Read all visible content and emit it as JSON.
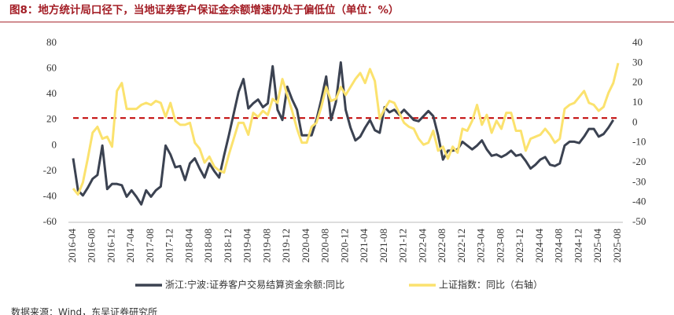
{
  "chart_data": {
    "type": "line",
    "title": "图8：地方统计局口径下，当地证券客户保证金余额增速仍处于偏低位（单位：%）",
    "source": "数据来源：Wind，东吴证券研究所",
    "categories": [
      "2016-04",
      null,
      null,
      null,
      "2016-08",
      null,
      null,
      null,
      "2016-12",
      null,
      null,
      null,
      "2017-04",
      null,
      null,
      null,
      "2017-08",
      null,
      null,
      null,
      "2017-12",
      null,
      null,
      null,
      "2018-04",
      null,
      null,
      null,
      "2018-08",
      null,
      null,
      null,
      "2018-12",
      null,
      null,
      null,
      "2019-04",
      null,
      null,
      null,
      "2019-08",
      null,
      null,
      null,
      "2019-12",
      null,
      null,
      null,
      "2020-04",
      null,
      null,
      null,
      "2020-08",
      null,
      null,
      null,
      "2020-12",
      null,
      null,
      null,
      "2021-04",
      null,
      null,
      null,
      "2021-08",
      null,
      null,
      null,
      "2021-12",
      null,
      null,
      null,
      "2022-04",
      null,
      null,
      null,
      "2022-08",
      null,
      null,
      null,
      "2022-12",
      null,
      null,
      null,
      "2023-04",
      null,
      null,
      null,
      "2023-08",
      null,
      null,
      null,
      "2023-12",
      null,
      null,
      null,
      "2024-04",
      null,
      null,
      null,
      "2024-08",
      null,
      null,
      null,
      "2024-12",
      null,
      null,
      null,
      "2025-04",
      null,
      null,
      null,
      "2025-08"
    ],
    "series": [
      {
        "name": "浙江:宁波:证券客户交易结算资金余额:同比",
        "color": "#3b4251",
        "values": [
          -10,
          -35,
          -39,
          -33,
          -26,
          -23,
          0,
          -34,
          -30,
          -30,
          -31,
          -40,
          -35,
          -40,
          -46,
          -35,
          -40,
          -35,
          -32,
          0,
          -7,
          -17,
          -16,
          -27,
          -14,
          -10,
          -18,
          -25,
          -14,
          -20,
          -25,
          -8,
          8,
          25,
          42,
          52,
          29,
          33,
          36,
          30,
          33,
          62,
          28,
          20,
          46,
          36,
          28,
          8,
          8,
          8,
          20,
          36,
          54,
          20,
          34,
          65,
          28,
          14,
          4,
          7,
          14,
          20,
          12,
          10,
          30,
          26,
          28,
          24,
          28,
          24,
          20,
          19,
          23,
          27,
          23,
          8,
          -11,
          -4,
          -4,
          -3,
          3,
          0,
          -3,
          0,
          4,
          -3,
          -8,
          -7,
          -9,
          -7,
          -4,
          -8,
          -7,
          -12,
          -18,
          -15,
          -11,
          -9,
          -15,
          -16,
          -14,
          0,
          3,
          3,
          2,
          7,
          13,
          13,
          7,
          9,
          14,
          20,
          null
        ]
      },
      {
        "name": "上证指数：同比（右轴）",
        "color": "#fbe26e",
        "axis": "y2",
        "values": [
          -33,
          -36,
          -30,
          -18,
          -5,
          -2,
          -8,
          -7,
          -12,
          16,
          20,
          7,
          7,
          7,
          9,
          10,
          9,
          11,
          10,
          3,
          10,
          1,
          -1,
          -1,
          0,
          -10,
          -13,
          -20,
          -17,
          -22,
          -24,
          -25,
          -16,
          -8,
          0,
          0,
          -6,
          5,
          3,
          6,
          4,
          12,
          10,
          22,
          14,
          6,
          -3,
          -10,
          -10,
          -2,
          0,
          8,
          18,
          11,
          12,
          18,
          14,
          18,
          22,
          25,
          20,
          27,
          21,
          2,
          7,
          11,
          10,
          5,
          0,
          -2,
          -3,
          -8,
          -11,
          -10,
          -4,
          -14,
          -12,
          -18,
          -12,
          -15,
          -3,
          -4,
          1,
          9,
          -1,
          4,
          -5,
          1,
          -3,
          5,
          5,
          -4,
          -4,
          -14,
          -8,
          -7,
          -6,
          -3,
          -6,
          -10,
          -8,
          7,
          9,
          10,
          13,
          16,
          10,
          9,
          6,
          8,
          15,
          20,
          30
        ]
      }
    ],
    "reference_line": {
      "value": 21.5,
      "color": "#c00000"
    },
    "ylim": [
      -60,
      80
    ],
    "yticks": [
      -60,
      -40,
      -20,
      0,
      20,
      40,
      60,
      80
    ],
    "y2lim": [
      -50,
      40
    ],
    "y2ticks": [
      -50,
      -40,
      -30,
      -20,
      -10,
      0,
      10,
      20,
      30,
      40
    ]
  }
}
